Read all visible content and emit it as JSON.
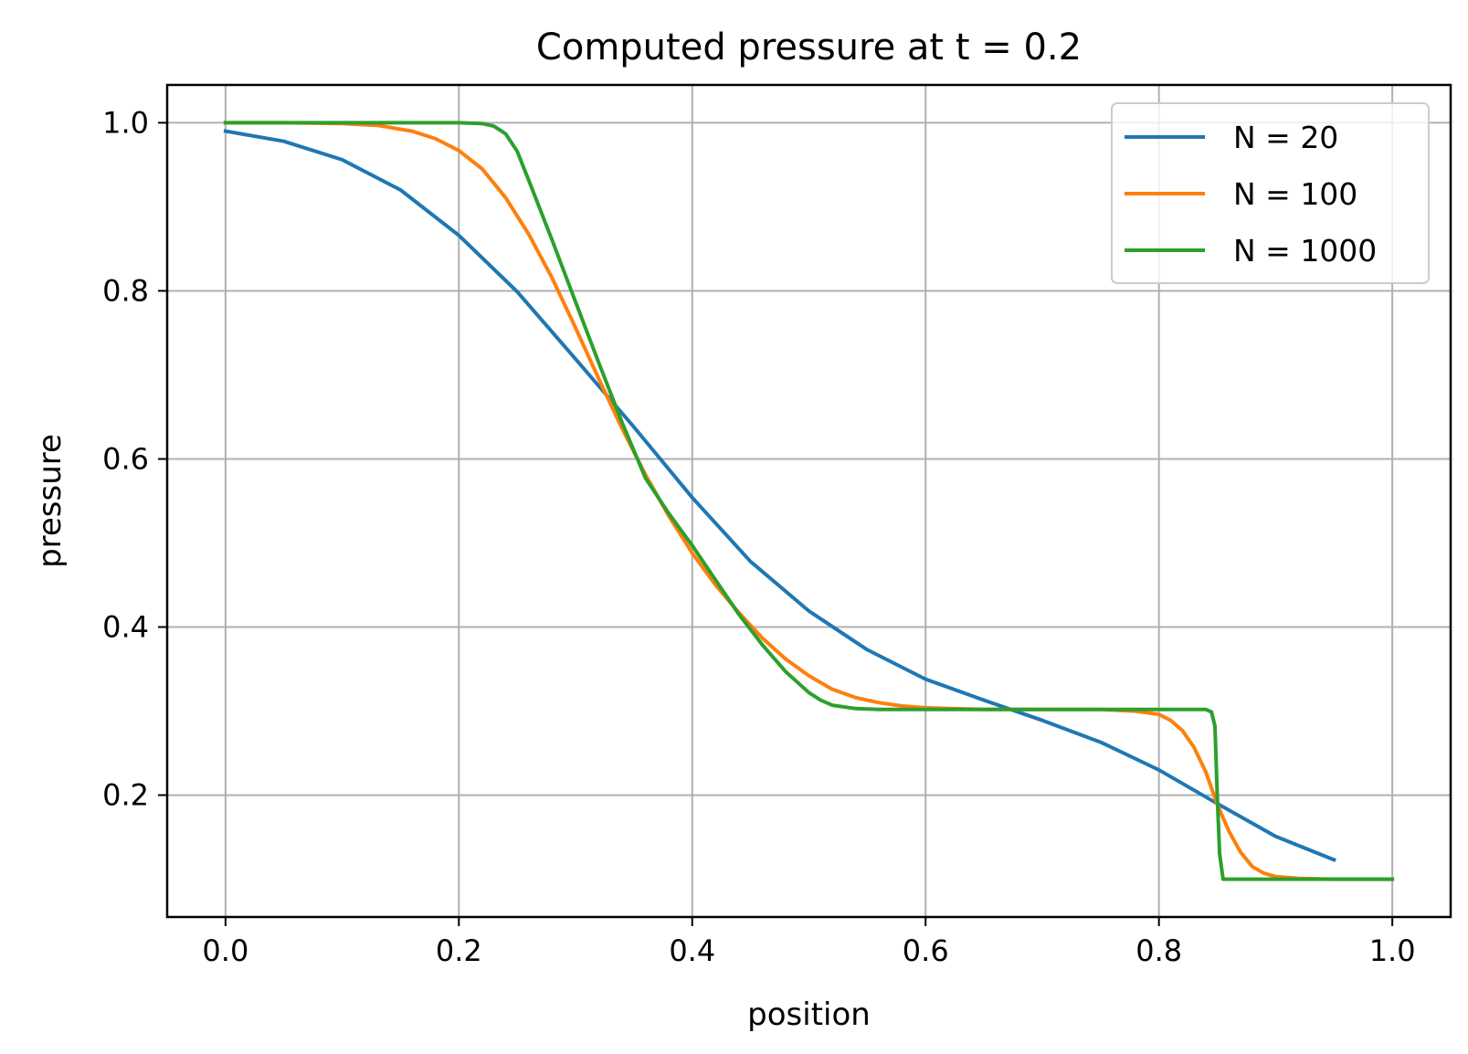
{
  "chart_data": {
    "type": "line",
    "title": "Computed pressure at t = 0.2",
    "xlabel": "position",
    "ylabel": "pressure",
    "xlim": [
      -0.05,
      1.05
    ],
    "ylim": [
      0.055,
      1.045
    ],
    "xticks": [
      0.0,
      0.2,
      0.4,
      0.6,
      0.8,
      1.0
    ],
    "xtick_labels": [
      "0.0",
      "0.2",
      "0.4",
      "0.6",
      "0.8",
      "1.0"
    ],
    "yticks": [
      0.2,
      0.4,
      0.6,
      0.8,
      1.0
    ],
    "ytick_labels": [
      "0.2",
      "0.4",
      "0.6",
      "0.8",
      "1.0"
    ],
    "grid": true,
    "legend_position": "top-right",
    "series": [
      {
        "name": "N = 20",
        "color": "#1f77b4",
        "x": [
          0.0,
          0.05,
          0.1,
          0.15,
          0.2,
          0.25,
          0.3,
          0.35,
          0.4,
          0.45,
          0.5,
          0.55,
          0.6,
          0.65,
          0.7,
          0.75,
          0.8,
          0.85,
          0.9,
          0.95
        ],
        "y": [
          0.99,
          0.978,
          0.956,
          0.92,
          0.866,
          0.799,
          0.719,
          0.638,
          0.554,
          0.478,
          0.419,
          0.373,
          0.338,
          0.313,
          0.289,
          0.263,
          0.23,
          0.19,
          0.151,
          0.123
        ]
      },
      {
        "name": "N = 100",
        "color": "#ff7f0e",
        "x": [
          0.0,
          0.05,
          0.1,
          0.13,
          0.16,
          0.18,
          0.2,
          0.22,
          0.24,
          0.26,
          0.28,
          0.3,
          0.32,
          0.34,
          0.36,
          0.38,
          0.4,
          0.42,
          0.44,
          0.46,
          0.48,
          0.5,
          0.52,
          0.54,
          0.56,
          0.58,
          0.6,
          0.62,
          0.65,
          0.7,
          0.75,
          0.78,
          0.8,
          0.81,
          0.82,
          0.83,
          0.84,
          0.85,
          0.86,
          0.87,
          0.88,
          0.89,
          0.9,
          0.92,
          0.95,
          1.0
        ],
        "y": [
          1.0,
          1.0,
          0.999,
          0.997,
          0.99,
          0.981,
          0.967,
          0.945,
          0.911,
          0.867,
          0.815,
          0.756,
          0.695,
          0.636,
          0.581,
          0.532,
          0.488,
          0.45,
          0.417,
          0.387,
          0.362,
          0.342,
          0.326,
          0.316,
          0.31,
          0.306,
          0.304,
          0.303,
          0.302,
          0.302,
          0.302,
          0.3,
          0.296,
          0.289,
          0.277,
          0.257,
          0.228,
          0.189,
          0.157,
          0.132,
          0.115,
          0.107,
          0.103,
          0.101,
          0.1,
          0.1
        ]
      },
      {
        "name": "N = 1000",
        "color": "#2ca02c",
        "x": [
          0.0,
          0.1,
          0.2,
          0.22,
          0.23,
          0.24,
          0.25,
          0.26,
          0.28,
          0.3,
          0.32,
          0.34,
          0.36,
          0.38,
          0.4,
          0.42,
          0.44,
          0.46,
          0.48,
          0.5,
          0.51,
          0.52,
          0.54,
          0.56,
          0.6,
          0.7,
          0.8,
          0.84,
          0.845,
          0.848,
          0.85,
          0.852,
          0.855,
          0.86,
          0.9,
          1.0
        ],
        "y": [
          1.0,
          1.0,
          1.0,
          0.999,
          0.996,
          0.987,
          0.966,
          0.931,
          0.86,
          0.787,
          0.714,
          0.643,
          0.577,
          0.535,
          0.497,
          0.456,
          0.415,
          0.379,
          0.347,
          0.322,
          0.313,
          0.307,
          0.303,
          0.302,
          0.302,
          0.302,
          0.302,
          0.302,
          0.299,
          0.282,
          0.2,
          0.13,
          0.1,
          0.1,
          0.1,
          0.1
        ]
      }
    ]
  }
}
